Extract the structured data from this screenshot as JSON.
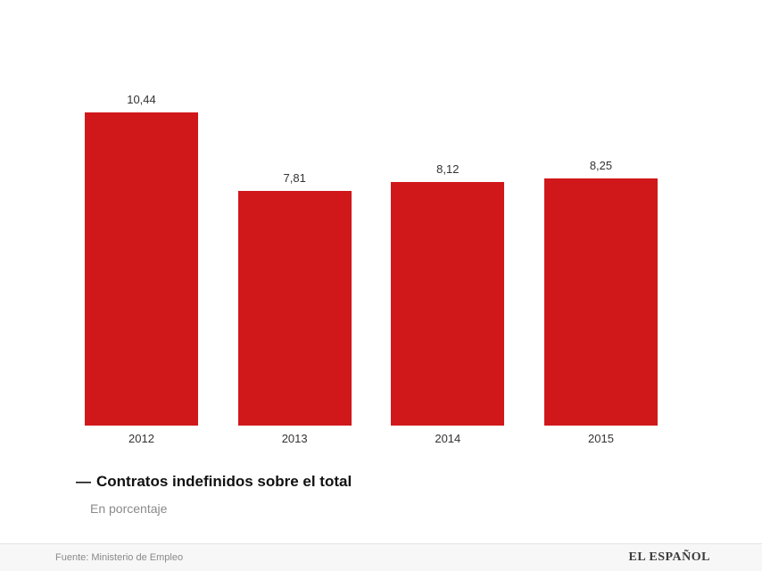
{
  "chart_data": {
    "type": "bar",
    "categories": [
      "2012",
      "2013",
      "2014",
      "2015"
    ],
    "values": [
      10.44,
      7.81,
      8.12,
      8.25
    ],
    "value_labels": [
      "10,44",
      "7,81",
      "8,12",
      "8,25"
    ],
    "title": "Contratos indefinidos sobre el total",
    "subtitle": "En porcentaje",
    "xlabel": "",
    "ylabel": "",
    "ylim": [
      0,
      10.44
    ],
    "grid": false,
    "legend_position": "below-chart",
    "bar_color": "#d0181b"
  },
  "legend": {
    "marker": "—",
    "label": "Contratos indefinidos sobre el total"
  },
  "subtitle": "En porcentaje",
  "footer": {
    "source": "Fuente: Ministerio de Empleo",
    "brand": "EL ESPAÑOL"
  }
}
